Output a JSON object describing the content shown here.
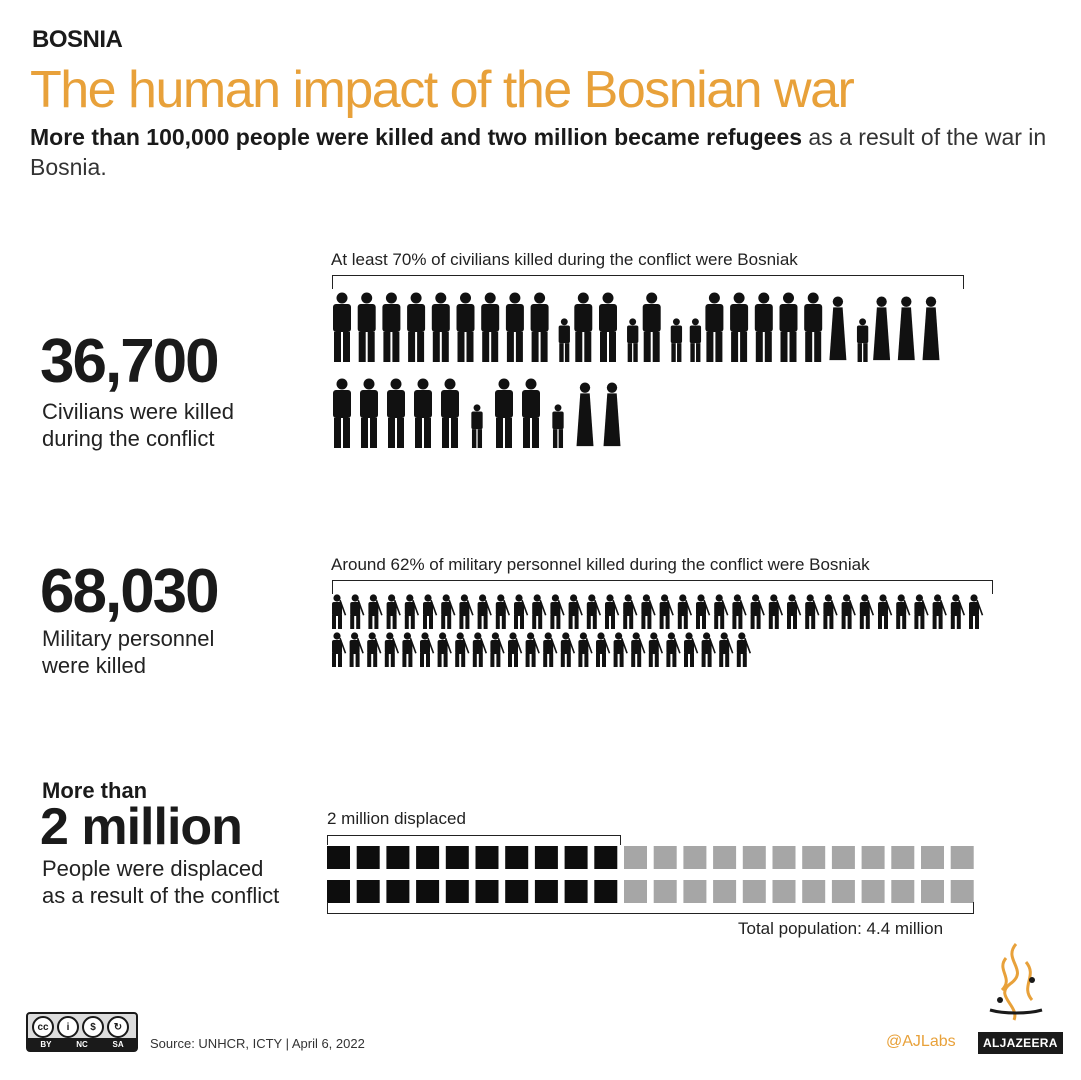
{
  "header": {
    "kicker": "BOSNIA",
    "title": "The human impact of the Bosnian war",
    "subtitle_bold": "More than 100,000 people were killed and two million became refugees",
    "subtitle_rest": " as a result of the war in Bosnia."
  },
  "civilians": {
    "number": "36,700",
    "desc_line1": "Civilians were killed",
    "desc_line2": "during the conflict",
    "bracket_label": "At least 70% of civilians killed during the conflict were Bosniak",
    "icon": "civilian-silhouette-icon"
  },
  "military": {
    "number": "68,030",
    "desc_line1": "Military personnel",
    "desc_line2": "were killed",
    "bracket_label": "Around 62% of military personnel killed during the conflict were Bosniak",
    "icon": "soldier-silhouette-icon"
  },
  "displaced": {
    "pre": "More than",
    "number": "2 million",
    "desc_line1": "People were displaced",
    "desc_line2": "as a result of the conflict",
    "bracket_label": "2 million displaced",
    "total_label": "Total population: 4.4 million",
    "colors": {
      "displaced": "#0d0d0d",
      "rest": "#a6a6a6"
    }
  },
  "footer": {
    "license": [
      "BY",
      "NC",
      "SA"
    ],
    "source": "Source: UNHCR, ICTY | April 6, 2022",
    "handle": "@AJLabs",
    "brand": "ALJAZEERA"
  },
  "colors": {
    "accent": "#e8a13a",
    "text": "#1a1a1a"
  }
}
